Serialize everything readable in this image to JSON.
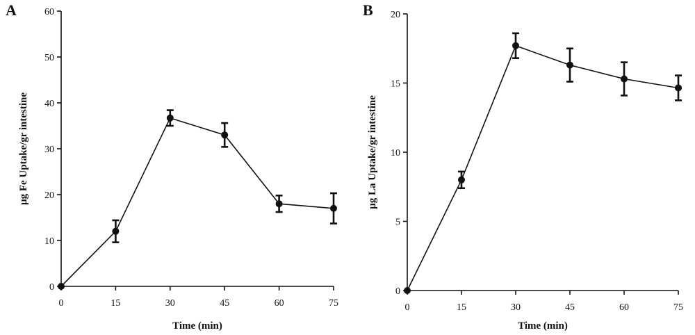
{
  "chart_data": [
    {
      "type": "line",
      "panel": "A",
      "xlabel": "Time (min)",
      "ylabel": "µg Fe Uptake/gr intestine",
      "x": [
        0,
        15,
        30,
        45,
        60,
        75
      ],
      "y": [
        0,
        12,
        36.7,
        33,
        18,
        17
      ],
      "error": [
        0,
        2.4,
        1.7,
        2.6,
        1.8,
        3.3
      ],
      "xticks": [
        0,
        15,
        30,
        45,
        60,
        75
      ],
      "yticks": [
        0,
        10,
        20,
        30,
        40,
        50,
        60
      ],
      "xlim": [
        0,
        75
      ],
      "ylim": [
        0,
        60
      ],
      "grid": false,
      "legend": false,
      "colors": {
        "line": "#111111",
        "marker": "#111111"
      }
    },
    {
      "type": "line",
      "panel": "B",
      "xlabel": "Time (min)",
      "ylabel": "µg La Uptake/gr intestine",
      "x": [
        0,
        15,
        30,
        45,
        60,
        75
      ],
      "y": [
        0,
        8,
        17.7,
        16.3,
        15.3,
        14.65
      ],
      "error": [
        0,
        0.6,
        0.9,
        1.2,
        1.2,
        0.9
      ],
      "xticks": [
        0,
        15,
        30,
        45,
        60,
        75
      ],
      "yticks": [
        0,
        5,
        10,
        15,
        20
      ],
      "xlim": [
        0,
        75
      ],
      "ylim": [
        0,
        20
      ],
      "grid": false,
      "legend": false,
      "colors": {
        "line": "#111111",
        "marker": "#111111"
      }
    }
  ]
}
